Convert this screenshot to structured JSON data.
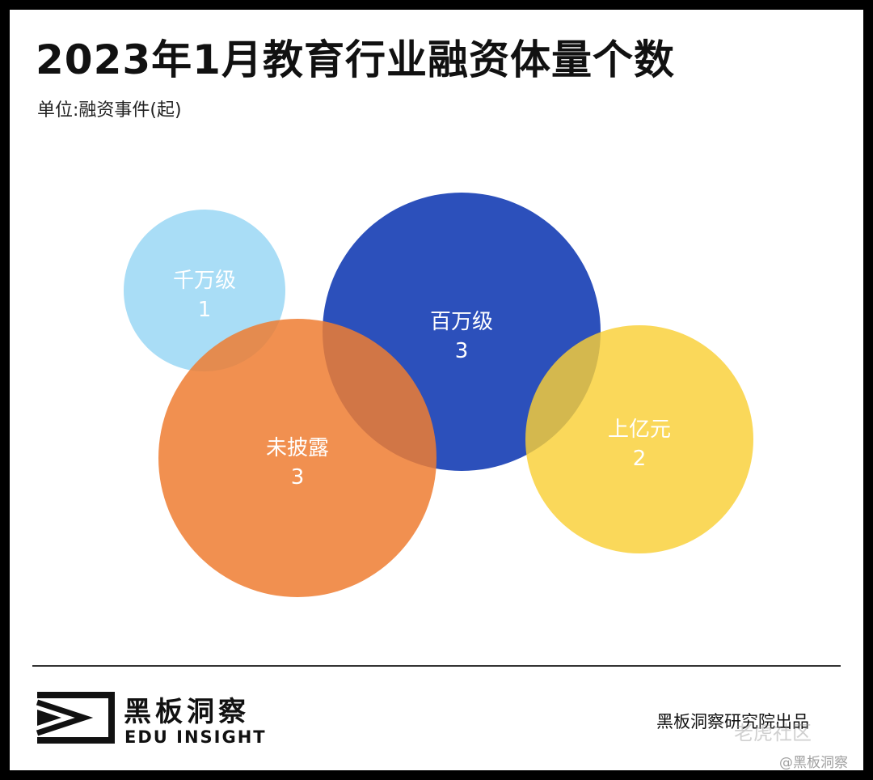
{
  "title": "2023年1月教育行业融资体量个数",
  "subtitle": "单位:融资事件(起)",
  "chart_data": {
    "type": "bubble",
    "title": "2023年1月教育行业融资体量个数",
    "subtitle": "单位:融资事件(起)",
    "unit": "融资事件(起)",
    "series": [
      {
        "name": "千万级",
        "value": 1,
        "color": "#a9ddf6"
      },
      {
        "name": "百万级",
        "value": 3,
        "color": "#2c50bb"
      },
      {
        "name": "未披露",
        "value": 3,
        "color": "#ee7d31"
      },
      {
        "name": "上亿元",
        "value": 2,
        "color": "#f9d036"
      }
    ]
  },
  "brand": {
    "logo_cn": "黑板洞察",
    "logo_en": "EDU INSIGHT",
    "credit": "黑板洞察研究院出品"
  },
  "watermarks": {
    "community": "老虎社区",
    "account": "@黑板洞察"
  }
}
